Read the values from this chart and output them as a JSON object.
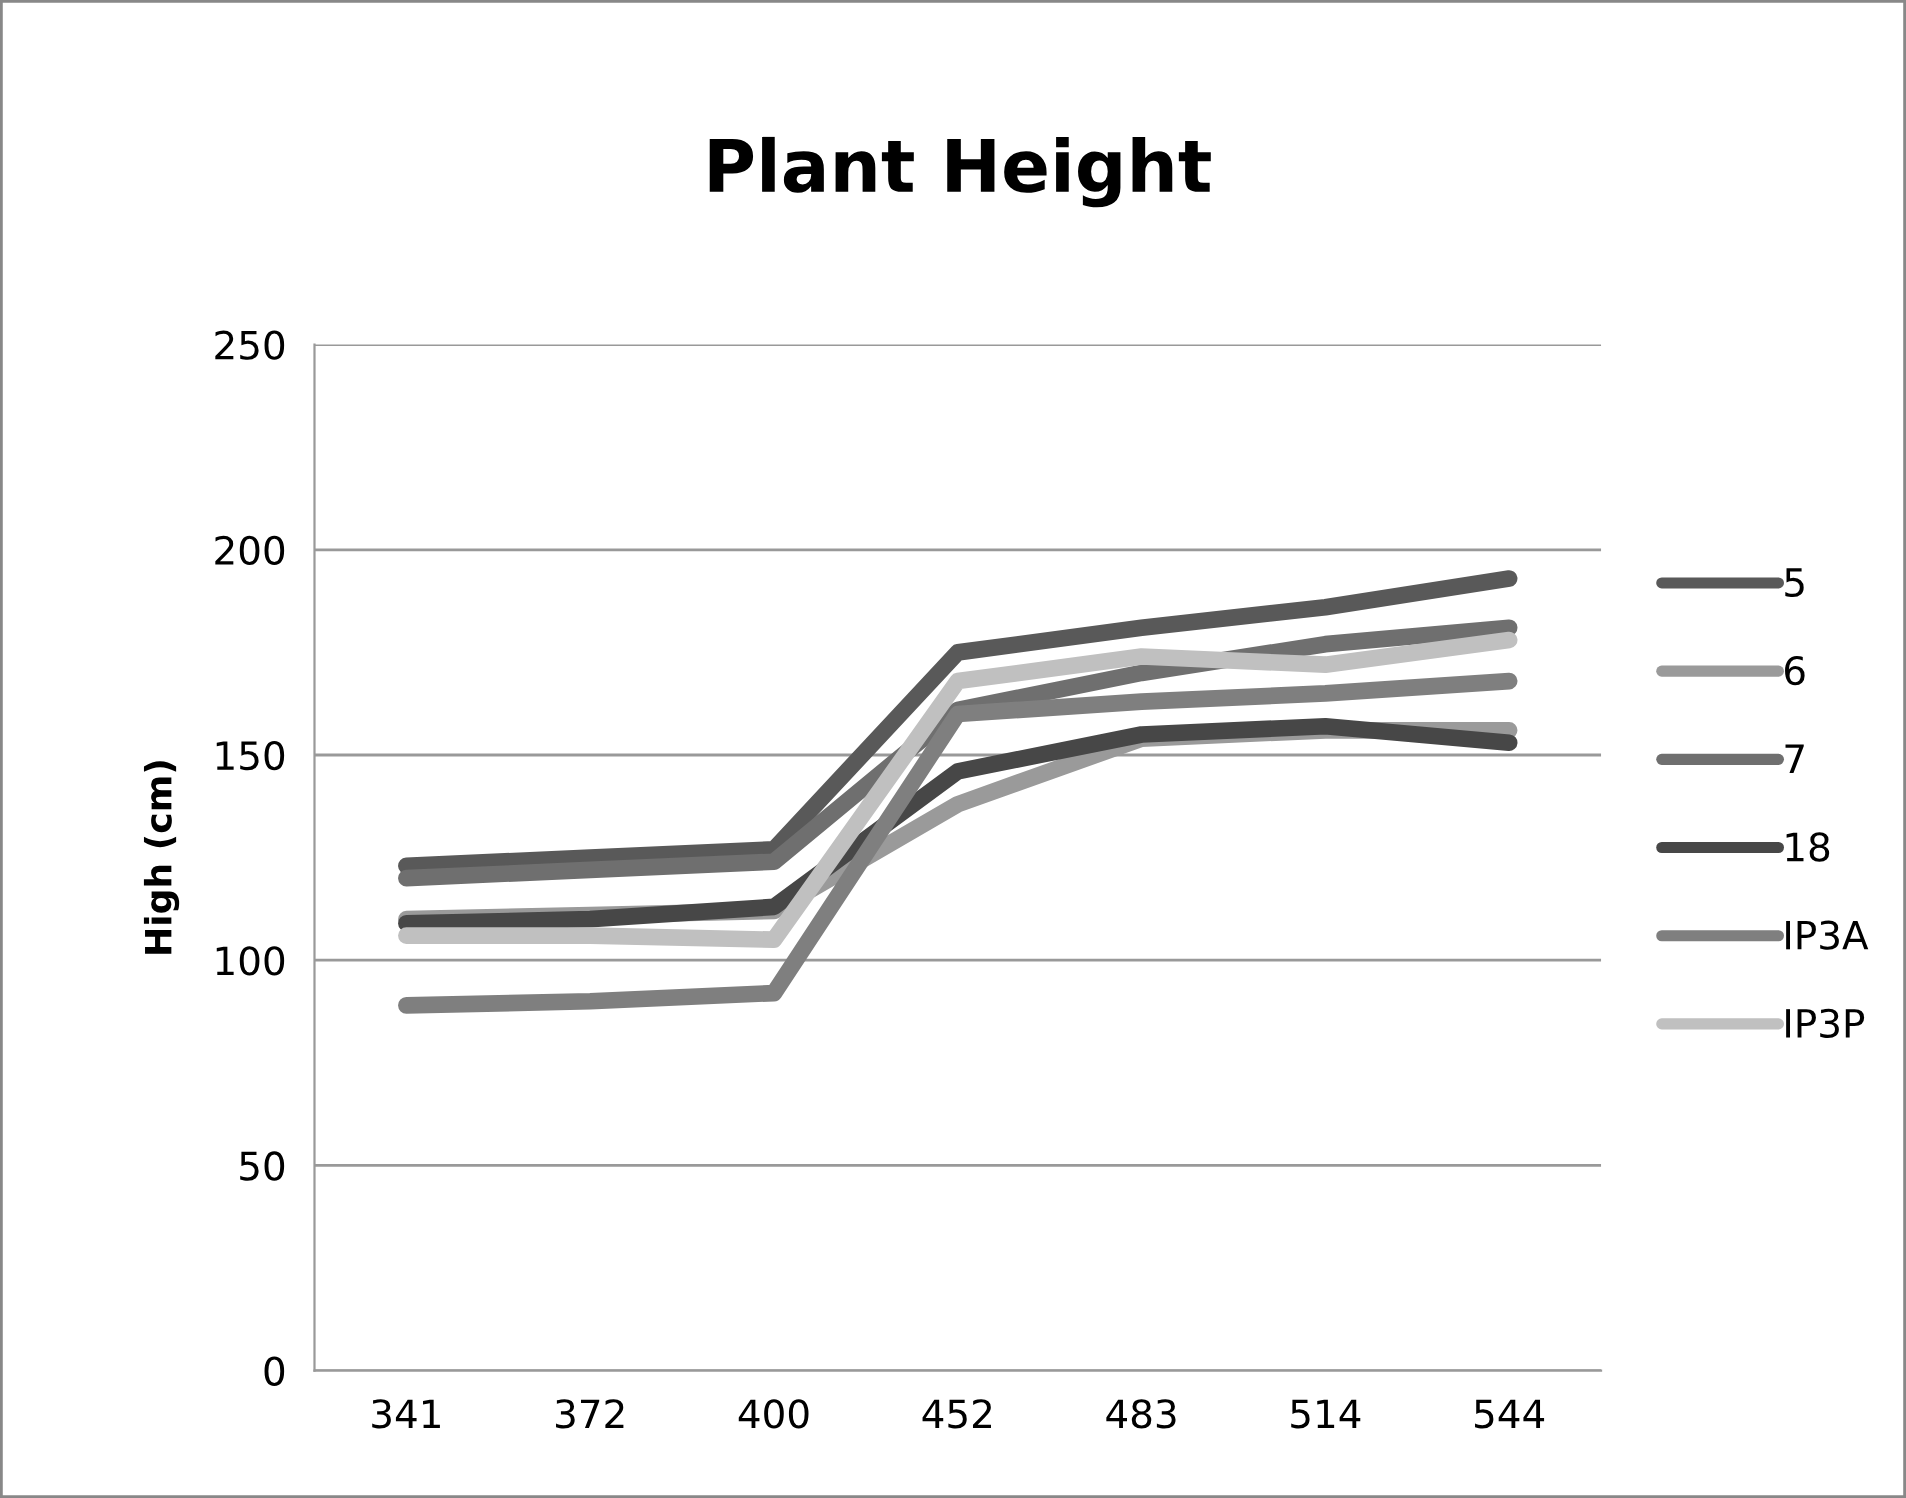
{
  "chart_data": {
    "type": "line",
    "title": "Plant Height",
    "ylabel": "High (cm)",
    "categories": [
      "341",
      "372",
      "400",
      "452",
      "483",
      "514",
      "544"
    ],
    "series": [
      {
        "name": "5",
        "color": "#595959",
        "values": [
          123,
          125,
          127,
          175,
          181,
          186,
          193
        ]
      },
      {
        "name": "6",
        "color": "#9a9a9a",
        "values": [
          110,
          111,
          112,
          138,
          154,
          156,
          156
        ]
      },
      {
        "name": "7",
        "color": "#6f6f6f",
        "values": [
          120,
          122,
          124,
          161,
          170,
          177,
          181
        ]
      },
      {
        "name": "18",
        "color": "#474747",
        "values": [
          109,
          110,
          113,
          146,
          155,
          157,
          153
        ]
      },
      {
        "name": "IP3A",
        "color": "#7f7f7f",
        "values": [
          89,
          90,
          92,
          160,
          163,
          165,
          168
        ]
      },
      {
        "name": "IP3P",
        "color": "#c0c0c0",
        "values": [
          106,
          106,
          105,
          168,
          174,
          172,
          178
        ]
      }
    ],
    "ylim": [
      0,
      250
    ],
    "yticks": [
      0,
      50,
      100,
      150,
      200,
      250
    ],
    "grid": "y",
    "legend": "right",
    "marker": "none",
    "line_style": "solid"
  }
}
